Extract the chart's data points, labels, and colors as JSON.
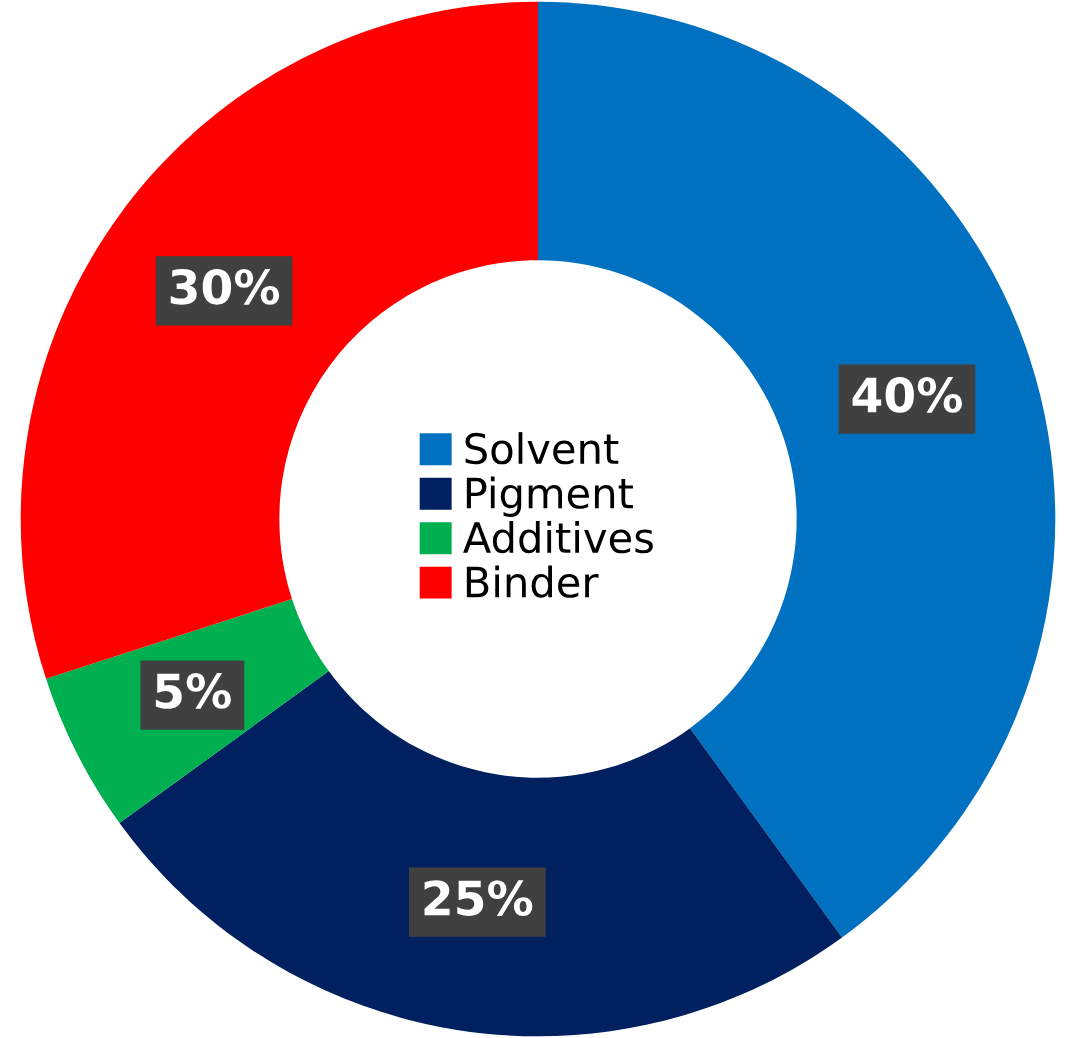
{
  "chart_data": {
    "type": "donut",
    "categories": [
      "Solvent",
      "Pigment",
      "Additives",
      "Binder"
    ],
    "values": [
      40,
      25,
      5,
      30
    ],
    "colors": [
      "#0070c0",
      "#002060",
      "#00b050",
      "#ff0000"
    ],
    "value_labels": [
      "40%",
      "25%",
      "5%",
      "30%"
    ],
    "legend": "center"
  }
}
